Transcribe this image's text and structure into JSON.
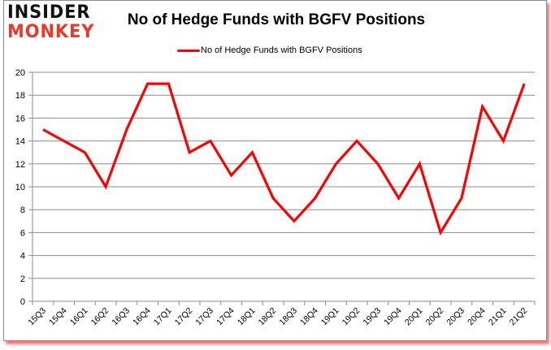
{
  "brand": {
    "line1": "INSIDER",
    "line2": "MONKEY",
    "line1_color": "#111111",
    "line2_color": "#e8392a"
  },
  "chart_data": {
    "type": "line",
    "title": "No of Hedge Funds with BGFV Positions",
    "xlabel": "",
    "ylabel": "",
    "categories": [
      "15Q3",
      "15Q4",
      "16Q1",
      "16Q2",
      "16Q3",
      "16Q4",
      "17Q1",
      "17Q2",
      "17Q3",
      "17Q4",
      "18Q1",
      "18Q2",
      "18Q3",
      "18Q4",
      "19Q1",
      "19Q2",
      "19Q3",
      "19Q4",
      "20Q1",
      "20Q2",
      "20Q3",
      "20Q4",
      "21Q1",
      "21Q2"
    ],
    "series": [
      {
        "name": "No of Hedge Funds with BGFV Positions",
        "color": "#ff0000",
        "values": [
          15,
          14,
          13,
          10,
          15,
          19,
          19,
          13,
          14,
          11,
          13,
          9,
          7,
          9,
          12,
          14,
          12,
          9,
          12,
          6,
          9,
          17,
          14,
          19
        ]
      }
    ],
    "ylim": [
      0,
      20
    ],
    "yticks": [
      0,
      2,
      4,
      6,
      8,
      10,
      12,
      14,
      16,
      18,
      20
    ],
    "grid": true,
    "legend_position": "top"
  }
}
